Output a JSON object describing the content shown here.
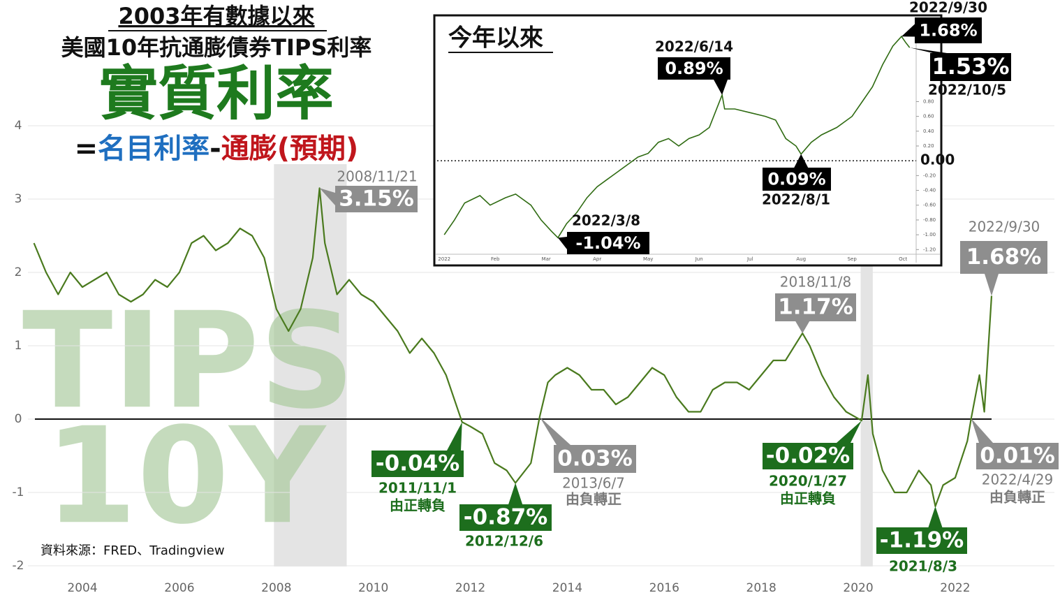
{
  "chart_data": [
    {
      "type": "line",
      "title": "2003年有數據以來",
      "subtitle": "美國10年抗通膨債券TIPS利率",
      "headline": "實質利率",
      "formula": [
        {
          "text": "=",
          "color": "#111111"
        },
        {
          "text": "名目利率",
          "color": "#1f6fc0"
        },
        {
          "text": "-",
          "color": "#111111"
        },
        {
          "text": "通膨(預期)",
          "color": "#c0161c"
        }
      ],
      "watermark": [
        "TIPS",
        "10Y"
      ],
      "source": "資料來源：FRED、Tradingview",
      "color": "#4a7a1e",
      "grid": true,
      "zero_line": true,
      "x": [
        2003.0,
        2003.25,
        2003.5,
        2003.75,
        2004.0,
        2004.25,
        2004.5,
        2004.75,
        2005.0,
        2005.25,
        2005.5,
        2005.75,
        2006.0,
        2006.25,
        2006.5,
        2006.75,
        2007.0,
        2007.25,
        2007.5,
        2007.75,
        2008.0,
        2008.25,
        2008.5,
        2008.75,
        2008.89,
        2009.0,
        2009.25,
        2009.5,
        2009.75,
        2010.0,
        2010.25,
        2010.5,
        2010.75,
        2011.0,
        2011.25,
        2011.5,
        2011.83,
        2012.0,
        2012.25,
        2012.5,
        2012.75,
        2012.93,
        2013.25,
        2013.43,
        2013.6,
        2013.75,
        2014.0,
        2014.25,
        2014.5,
        2014.75,
        2015.0,
        2015.25,
        2015.5,
        2015.75,
        2016.0,
        2016.25,
        2016.5,
        2016.75,
        2017.0,
        2017.25,
        2017.5,
        2017.75,
        2018.0,
        2018.25,
        2018.5,
        2018.85,
        2019.0,
        2019.25,
        2019.5,
        2019.75,
        2020.07,
        2020.2,
        2020.3,
        2020.5,
        2020.75,
        2021.0,
        2021.25,
        2021.5,
        2021.59,
        2021.75,
        2022.0,
        2022.25,
        2022.33,
        2022.5,
        2022.6,
        2022.75
      ],
      "values": [
        2.4,
        2.0,
        1.7,
        2.0,
        1.8,
        1.9,
        2.0,
        1.7,
        1.6,
        1.7,
        1.9,
        1.8,
        2.0,
        2.4,
        2.5,
        2.3,
        2.4,
        2.6,
        2.5,
        2.2,
        1.5,
        1.2,
        1.5,
        2.2,
        3.15,
        2.4,
        1.7,
        1.9,
        1.7,
        1.6,
        1.4,
        1.2,
        0.9,
        1.1,
        0.9,
        0.6,
        -0.04,
        -0.1,
        -0.2,
        -0.6,
        -0.7,
        -0.87,
        -0.6,
        0.03,
        0.5,
        0.6,
        0.7,
        0.6,
        0.4,
        0.4,
        0.2,
        0.3,
        0.5,
        0.7,
        0.6,
        0.3,
        0.1,
        0.1,
        0.4,
        0.5,
        0.5,
        0.4,
        0.6,
        0.8,
        0.8,
        1.17,
        1.0,
        0.6,
        0.3,
        0.1,
        -0.02,
        0.6,
        -0.2,
        -0.7,
        -1.0,
        -1.0,
        -0.7,
        -0.9,
        -1.19,
        -0.9,
        -0.8,
        -0.3,
        0.01,
        0.6,
        0.1,
        1.68
      ],
      "xlim": [
        2003.02,
        2022.75
      ],
      "ylim": [
        -2.2,
        4.5
      ],
      "xticks": [
        2004,
        2006,
        2008,
        2010,
        2012,
        2014,
        2016,
        2018,
        2020,
        2022
      ],
      "yticks": [
        -2,
        -1,
        0,
        1,
        2,
        3,
        4
      ],
      "shaded_ranges": [
        [
          2007.95,
          2009.45
        ],
        [
          2020.05,
          2020.3
        ]
      ],
      "annotations": [
        {
          "date": "2008/11/21",
          "label": "3.15%",
          "x": 2008.89,
          "y": 3.15,
          "style": "gray"
        },
        {
          "date": "2011/11/1",
          "label": "-0.04%",
          "note": "由正轉負",
          "x": 2011.83,
          "y": -0.04,
          "style": "green"
        },
        {
          "date": "2012/12/6",
          "label": "-0.87%",
          "x": 2012.93,
          "y": -0.87,
          "style": "green"
        },
        {
          "date": "2013/6/7",
          "label": "0.03%",
          "note": "由負轉正",
          "x": 2013.43,
          "y": 0.03,
          "style": "gray"
        },
        {
          "date": "2018/11/8",
          "label": "1.17%",
          "x": 2018.85,
          "y": 1.17,
          "style": "gray"
        },
        {
          "date": "2020/1/27",
          "label": "-0.02%",
          "note": "由正轉負",
          "x": 2020.07,
          "y": -0.02,
          "style": "green"
        },
        {
          "date": "2021/8/3",
          "label": "-1.19%",
          "x": 2021.59,
          "y": -1.19,
          "style": "green"
        },
        {
          "date": "2022/4/29",
          "label": "0.01%",
          "note": "由負轉正",
          "x": 2022.33,
          "y": 0.01,
          "style": "gray"
        },
        {
          "date": "2022/9/30",
          "label": "1.68%",
          "x": 2022.75,
          "y": 1.68,
          "style": "gray"
        }
      ]
    },
    {
      "type": "line",
      "title": "今年以來",
      "color": "#2f6b12",
      "zero_line": true,
      "x": [
        1.0,
        1.2,
        1.4,
        1.7,
        1.9,
        2.2,
        2.4,
        2.7,
        2.9,
        3.1,
        3.23,
        3.4,
        3.6,
        3.8,
        4.0,
        4.2,
        4.4,
        4.6,
        4.8,
        5.0,
        5.2,
        5.4,
        5.6,
        5.8,
        6.0,
        6.2,
        6.45,
        6.5,
        6.7,
        7.0,
        7.3,
        7.5,
        7.7,
        7.9,
        8.0,
        8.2,
        8.4,
        8.7,
        9.0,
        9.2,
        9.4,
        9.6,
        9.8,
        9.97,
        10.05,
        10.13
      ],
      "values": [
        -1.0,
        -0.8,
        -0.57,
        -0.47,
        -0.6,
        -0.5,
        -0.45,
        -0.6,
        -0.8,
        -0.95,
        -1.04,
        -0.85,
        -0.7,
        -0.5,
        -0.35,
        -0.25,
        -0.15,
        -0.05,
        0.05,
        0.1,
        0.25,
        0.3,
        0.2,
        0.3,
        0.35,
        0.45,
        0.89,
        0.7,
        0.7,
        0.65,
        0.6,
        0.55,
        0.3,
        0.2,
        0.09,
        0.25,
        0.35,
        0.45,
        0.6,
        0.8,
        1.0,
        1.3,
        1.55,
        1.68,
        1.6,
        1.53
      ],
      "xlim": [
        0.86,
        10.23
      ],
      "ylim": [
        -1.32,
        1.89
      ],
      "xticks": [
        {
          "value": 1,
          "label": "2022"
        },
        {
          "value": 2,
          "label": "Feb"
        },
        {
          "value": 3,
          "label": "Mar"
        },
        {
          "value": 4,
          "label": "Apr"
        },
        {
          "value": 5,
          "label": "May"
        },
        {
          "value": 6,
          "label": "Jun"
        },
        {
          "value": 7,
          "label": "Jul"
        },
        {
          "value": 8,
          "label": "Aug"
        },
        {
          "value": 9,
          "label": "Sep"
        },
        {
          "value": 10,
          "label": "Oct"
        }
      ],
      "yticks": [
        {
          "value": 0.8,
          "label": "0.80"
        },
        {
          "value": 0.6,
          "label": "0.60"
        },
        {
          "value": 0.4,
          "label": "0.40"
        },
        {
          "value": 0.2,
          "label": "0.20"
        },
        {
          "value": 0,
          "label": "0.00"
        },
        {
          "value": -0.2,
          "label": "-0.20"
        },
        {
          "value": -0.4,
          "label": "-0.40"
        },
        {
          "value": -0.6,
          "label": "-0.60"
        },
        {
          "value": -0.8,
          "label": "-0.80"
        },
        {
          "value": -1,
          "label": "-1.00"
        },
        {
          "value": -1.2,
          "label": "-1.20"
        }
      ],
      "annotations": [
        {
          "date": "2022/9/30",
          "label": "1.68%",
          "x": 9.97,
          "y": 1.68
        },
        {
          "date": "2022/10/5",
          "label": "1.53%",
          "x": 10.13,
          "y": 1.53
        },
        {
          "date": "2022/6/14",
          "label": "0.89%",
          "x": 6.45,
          "y": 0.89
        },
        {
          "date": "2022/8/1",
          "label": "0.09%",
          "x": 8.0,
          "y": 0.09
        },
        {
          "date": "2022/3/8",
          "label": "-1.04%",
          "x": 3.23,
          "y": -1.04
        }
      ]
    }
  ]
}
